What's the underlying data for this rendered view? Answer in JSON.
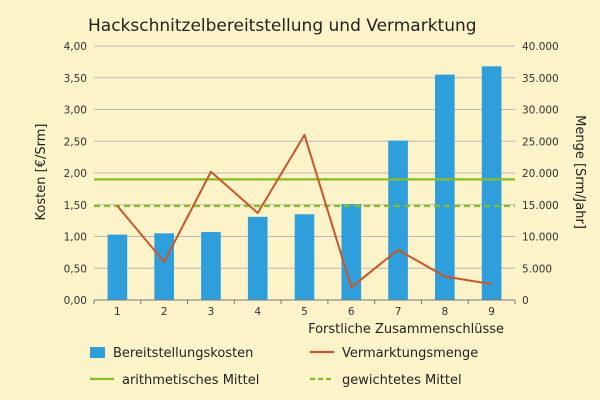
{
  "chart_data": {
    "type": "bar",
    "title": "Hackschnitzelbereitstellung und Vermarktung",
    "xlabel": "Forstliche Zusammenschlüsse",
    "ylabel": "Kosten [€/Srm]",
    "y2label": "Menge [Srm/Jahr]",
    "categories": [
      "1",
      "2",
      "3",
      "4",
      "5",
      "6",
      "7",
      "8",
      "9"
    ],
    "ylim": [
      0,
      4
    ],
    "y2lim": [
      0,
      40000
    ],
    "yticks": [
      "0,00",
      "0,50",
      "1,00",
      "1,50",
      "2,00",
      "2,50",
      "3,00",
      "3,50",
      "4,00"
    ],
    "y2ticks": [
      "0",
      "5.000",
      "10.000",
      "15.000",
      "20.000",
      "25.000",
      "30.000",
      "35.000",
      "40.000"
    ],
    "grid": true,
    "legend_position": "bottom",
    "series": [
      {
        "name": "Bereitstellungskosten",
        "type": "bar",
        "axis": "left",
        "color": "#2f9fdb",
        "values": [
          1.03,
          1.05,
          1.07,
          1.31,
          1.35,
          1.51,
          2.51,
          3.55,
          3.68
        ]
      },
      {
        "name": "Vermarktungsmenge",
        "type": "line",
        "axis": "right",
        "color": "#c8562a",
        "values": [
          14800,
          6000,
          20200,
          13700,
          26000,
          2000,
          7900,
          3700,
          2500
        ]
      },
      {
        "name": "arithmetisches Mittel",
        "type": "hline",
        "axis": "left",
        "color": "#86bc25",
        "style": "solid",
        "value": 1.9
      },
      {
        "name": "gewichtetes Mittel",
        "type": "hline",
        "axis": "left",
        "color": "#86bc25",
        "style": "dashed",
        "value": 1.48
      }
    ]
  }
}
